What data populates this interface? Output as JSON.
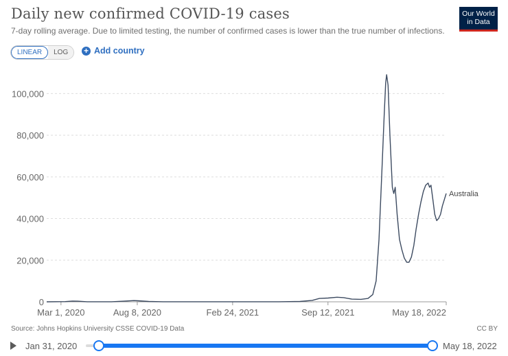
{
  "header": {
    "title": "Daily new confirmed COVID-19 cases",
    "subtitle": "7-day rolling average. Due to limited testing, the number of confirmed cases is lower than the true number of infections."
  },
  "logo": {
    "line1": "Our World",
    "line2": "in Data"
  },
  "controls": {
    "scale_options": [
      "LINEAR",
      "LOG"
    ],
    "selected_scale": "LINEAR",
    "add_country_label": "Add country"
  },
  "chart_data": {
    "type": "line",
    "title": "Daily new confirmed COVID-19 cases",
    "xlabel": "",
    "ylabel": "",
    "ylim": [
      0,
      110000
    ],
    "yticks": [
      0,
      20000,
      40000,
      60000,
      80000,
      100000
    ],
    "ytick_labels": [
      "0",
      "20,000",
      "40,000",
      "60,000",
      "80,000",
      "100,000"
    ],
    "xticks": [
      "2020-03-01",
      "2020-08-08",
      "2021-02-24",
      "2021-09-12",
      "2022-05-18"
    ],
    "xtick_labels": [
      "Mar 1, 2020",
      "Aug 8, 2020",
      "Feb 24, 2021",
      "Sep 12, 2021",
      "May 18, 2022"
    ],
    "xlim": [
      "2020-01-31",
      "2022-05-18"
    ],
    "grid": "horizontal dashed",
    "series": [
      {
        "name": "Australia",
        "color": "#3c4a60",
        "points": [
          [
            "2020-01-31",
            0
          ],
          [
            "2020-03-10",
            100
          ],
          [
            "2020-03-25",
            350
          ],
          [
            "2020-04-05",
            300
          ],
          [
            "2020-04-25",
            30
          ],
          [
            "2020-06-15",
            20
          ],
          [
            "2020-07-10",
            300
          ],
          [
            "2020-08-01",
            600
          ],
          [
            "2020-08-10",
            500
          ],
          [
            "2020-09-01",
            150
          ],
          [
            "2020-10-01",
            20
          ],
          [
            "2021-01-01",
            20
          ],
          [
            "2021-06-01",
            20
          ],
          [
            "2021-07-15",
            150
          ],
          [
            "2021-08-10",
            700
          ],
          [
            "2021-08-25",
            1600
          ],
          [
            "2021-09-12",
            1800
          ],
          [
            "2021-10-01",
            2200
          ],
          [
            "2021-10-15",
            2000
          ],
          [
            "2021-11-01",
            1300
          ],
          [
            "2021-11-20",
            1200
          ],
          [
            "2021-12-05",
            1600
          ],
          [
            "2021-12-15",
            3500
          ],
          [
            "2021-12-22",
            10000
          ],
          [
            "2021-12-28",
            30000
          ],
          [
            "2022-01-03",
            62000
          ],
          [
            "2022-01-08",
            90000
          ],
          [
            "2022-01-11",
            105000
          ],
          [
            "2022-01-13",
            109000
          ],
          [
            "2022-01-16",
            104000
          ],
          [
            "2022-01-20",
            80000
          ],
          [
            "2022-01-25",
            55000
          ],
          [
            "2022-01-28",
            52000
          ],
          [
            "2022-01-31",
            55000
          ],
          [
            "2022-02-04",
            42000
          ],
          [
            "2022-02-09",
            30000
          ],
          [
            "2022-02-14",
            25000
          ],
          [
            "2022-02-19",
            21000
          ],
          [
            "2022-02-24",
            19000
          ],
          [
            "2022-03-01",
            19000
          ],
          [
            "2022-03-06",
            21500
          ],
          [
            "2022-03-11",
            27000
          ],
          [
            "2022-03-16",
            35000
          ],
          [
            "2022-03-21",
            42000
          ],
          [
            "2022-03-26",
            48000
          ],
          [
            "2022-03-31",
            53000
          ],
          [
            "2022-04-05",
            56000
          ],
          [
            "2022-04-10",
            57000
          ],
          [
            "2022-04-13",
            55000
          ],
          [
            "2022-04-16",
            56000
          ],
          [
            "2022-04-20",
            49000
          ],
          [
            "2022-04-24",
            42000
          ],
          [
            "2022-04-28",
            39000
          ],
          [
            "2022-05-02",
            40000
          ],
          [
            "2022-05-06",
            42000
          ],
          [
            "2022-05-10",
            46000
          ],
          [
            "2022-05-14",
            49000
          ],
          [
            "2022-05-18",
            52000
          ]
        ]
      }
    ]
  },
  "footer": {
    "source": "Source: Johns Hopkins University CSSE COVID-19 Data",
    "license": "CC BY"
  },
  "timeline": {
    "start_label": "Jan 31, 2020",
    "end_label": "May 18, 2022"
  }
}
